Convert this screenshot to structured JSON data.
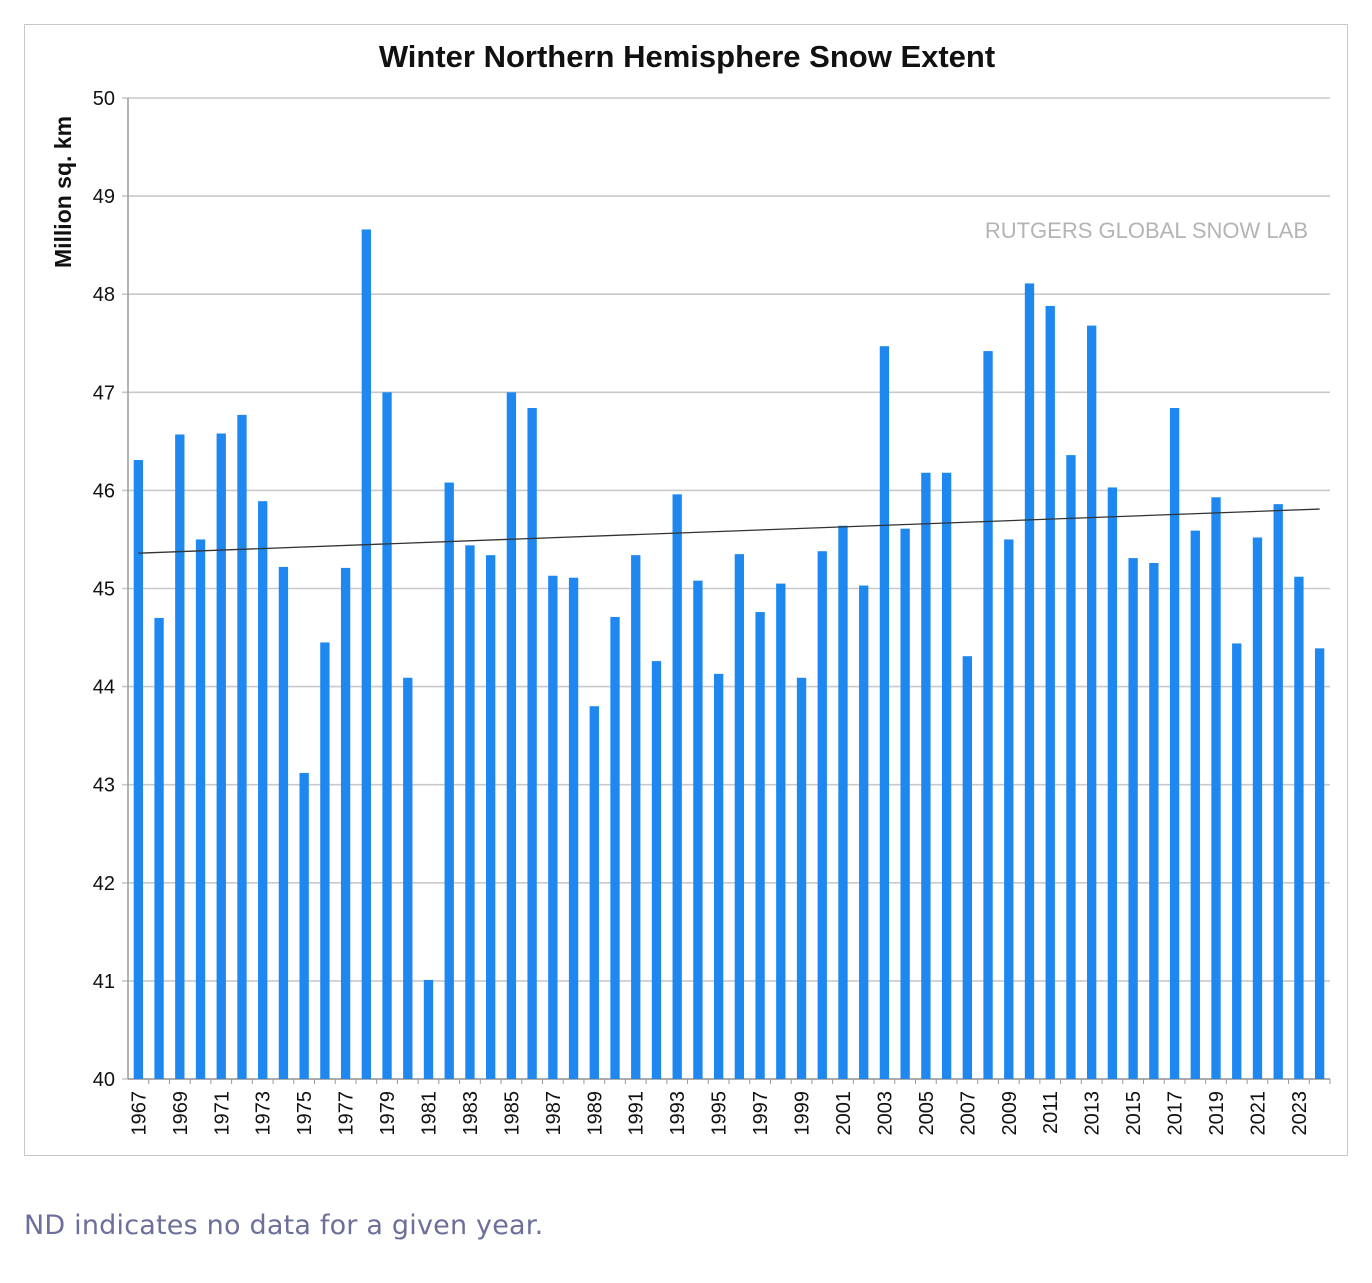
{
  "caption": "ND indicates no data for a given year.",
  "chart_data": {
    "type": "bar",
    "title": "Winter Northern Hemisphere Snow Extent",
    "ylabel": "Million sq. km",
    "xlabel": "",
    "ylim": [
      40,
      50
    ],
    "yticks": [
      40,
      41,
      42,
      43,
      44,
      45,
      46,
      47,
      48,
      49,
      50
    ],
    "grid": true,
    "watermark": "RUTGERS GLOBAL SNOW LAB",
    "bar_color": "#1e88f0",
    "categories": [
      "1967",
      "1968",
      "1969",
      "1970",
      "1971",
      "1972",
      "1973",
      "1974",
      "1975",
      "1976",
      "1977",
      "1978",
      "1979",
      "1980",
      "1981",
      "1982",
      "1983",
      "1984",
      "1985",
      "1986",
      "1987",
      "1988",
      "1989",
      "1990",
      "1991",
      "1992",
      "1993",
      "1994",
      "1995",
      "1996",
      "1997",
      "1998",
      "1999",
      "2000",
      "2001",
      "2002",
      "2003",
      "2004",
      "2005",
      "2006",
      "2007",
      "2008",
      "2009",
      "2010",
      "2011",
      "2012",
      "2013",
      "2014",
      "2015",
      "2016",
      "2017",
      "2018",
      "2019",
      "2020",
      "2021",
      "2022",
      "2023",
      "2024"
    ],
    "tick_labels": [
      "1967",
      "1969",
      "1971",
      "1973",
      "1975",
      "1977",
      "1979",
      "1981",
      "1983",
      "1985",
      "1987",
      "1989",
      "1991",
      "1993",
      "1995",
      "1997",
      "1999",
      "2001",
      "2003",
      "2005",
      "2007",
      "2009",
      "2011",
      "2013",
      "2015",
      "2017",
      "2019",
      "2021",
      "2023"
    ],
    "values": [
      46.31,
      44.7,
      46.57,
      45.5,
      46.58,
      46.77,
      45.89,
      45.22,
      43.12,
      44.45,
      45.21,
      48.66,
      47.0,
      44.09,
      41.01,
      46.08,
      45.44,
      45.34,
      47.0,
      46.84,
      45.13,
      45.11,
      43.8,
      44.71,
      45.34,
      44.26,
      45.96,
      45.08,
      44.13,
      45.35,
      44.76,
      45.05,
      44.09,
      45.38,
      45.64,
      45.03,
      47.47,
      45.61,
      46.18,
      46.18,
      44.31,
      47.42,
      45.5,
      48.11,
      47.88,
      46.36,
      47.68,
      46.03,
      45.31,
      45.26,
      46.84,
      45.59,
      45.93,
      44.44,
      45.52,
      45.86,
      45.12,
      44.39
    ],
    "trendline": {
      "start": 45.36,
      "end": 45.81
    }
  }
}
